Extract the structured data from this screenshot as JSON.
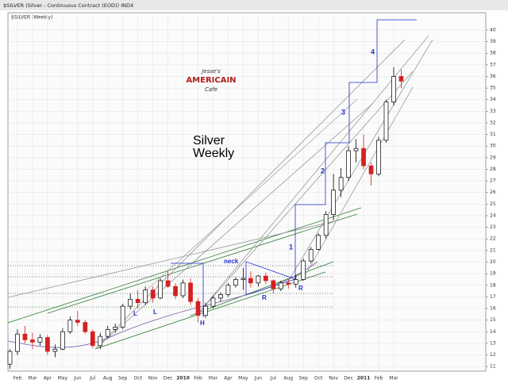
{
  "chart_data": {
    "type": "candlestick",
    "title": "$SILVER (Silver - Continuous Contract (EOD)) INDX",
    "subtitle": "$SILVER (Weekly)",
    "logo": [
      "Jesse's",
      "AMERICAIN",
      "Cafe"
    ],
    "annotations": [
      "Silver",
      "Weekly",
      "neck",
      "L",
      "L",
      "H",
      "R",
      "R",
      "1",
      "2",
      "3",
      "4"
    ],
    "categories": [
      null,
      "Feb",
      null,
      "Mar",
      null,
      "Apr",
      null,
      "May",
      null,
      "Jun",
      null,
      "Jul",
      null,
      "Aug",
      null,
      "Sep",
      null,
      "Oct",
      null,
      "Nov",
      null,
      "Dec",
      null,
      "2010",
      null,
      "Feb",
      null,
      "Mar",
      null,
      "Apr",
      null,
      "May",
      null,
      "Jun",
      null,
      "Jul",
      null,
      "Aug",
      null,
      "Sep",
      null,
      "Oct",
      null,
      "Nov",
      null,
      "Dec",
      null,
      "2011",
      null,
      "Feb",
      null,
      "Mar",
      null
    ],
    "open": [
      11.2,
      12.3,
      13.8,
      13.3,
      13.1,
      13.5,
      12.3,
      12.5,
      14.0,
      15.0,
      14.8,
      14.0,
      12.8,
      13.6,
      14.2,
      14.4,
      16.2,
      16.8,
      16.5,
      17.6,
      16.9,
      18.4,
      17.9,
      17.1,
      18.2,
      16.6,
      15.4,
      16.2,
      16.9,
      17.2,
      18.0,
      18.5,
      18.6,
      18.2,
      18.8,
      18.4,
      17.7,
      18.2,
      18.1,
      18.5,
      20.1,
      21.1,
      22.3,
      24.1,
      26.2,
      27.3,
      29.6,
      29.8,
      28.3,
      27.6,
      30.5,
      33.8,
      36.0
    ],
    "high": [
      12.5,
      14.2,
      14.5,
      13.9,
      13.8,
      13.7,
      12.9,
      14.3,
      15.3,
      15.8,
      15.0,
      14.2,
      13.9,
      14.5,
      14.7,
      16.4,
      17.3,
      17.6,
      17.9,
      17.9,
      18.6,
      19.3,
      18.2,
      18.5,
      18.6,
      16.9,
      16.5,
      17.1,
      17.4,
      18.2,
      18.7,
      19.5,
      19.2,
      18.9,
      19.1,
      18.5,
      18.4,
      18.5,
      18.9,
      20.3,
      21.3,
      22.5,
      24.4,
      27.6,
      28.1,
      30.0,
      30.6,
      31.0,
      28.6,
      30.8,
      34.0,
      36.8,
      36.6
    ],
    "low": [
      10.8,
      12.0,
      13.0,
      12.5,
      12.8,
      12.0,
      11.8,
      12.4,
      13.8,
      14.5,
      13.8,
      12.6,
      12.5,
      13.4,
      13.9,
      14.2,
      15.9,
      16.0,
      16.3,
      16.5,
      16.8,
      17.8,
      16.8,
      16.9,
      16.3,
      14.8,
      15.2,
      16.0,
      16.6,
      17.0,
      17.8,
      17.6,
      17.8,
      17.9,
      18.1,
      17.3,
      17.5,
      17.7,
      17.8,
      18.4,
      19.9,
      21.0,
      22.0,
      23.6,
      25.6,
      27.0,
      28.6,
      28.0,
      26.6,
      27.4,
      30.3,
      33.5,
      35.0
    ],
    "close": [
      12.3,
      13.8,
      13.3,
      13.1,
      13.5,
      12.3,
      12.5,
      14.0,
      15.0,
      14.8,
      14.0,
      12.8,
      13.6,
      14.2,
      14.4,
      16.2,
      16.8,
      16.5,
      17.6,
      16.9,
      18.4,
      17.9,
      17.1,
      18.2,
      16.6,
      15.4,
      16.2,
      16.9,
      17.2,
      18.0,
      18.5,
      18.6,
      18.2,
      18.8,
      18.4,
      17.7,
      18.2,
      18.1,
      18.5,
      20.1,
      21.1,
      22.3,
      24.1,
      26.2,
      27.3,
      29.6,
      29.8,
      28.3,
      27.6,
      30.5,
      33.8,
      36.0,
      35.6
    ],
    "up_color": "#000000",
    "down_color": "#d42020",
    "ylim": [
      10.6,
      41.5
    ],
    "yticks": [
      11,
      12,
      13,
      14,
      15,
      16,
      17,
      18,
      19,
      20,
      21,
      22,
      23,
      24,
      25,
      26,
      27,
      28,
      29,
      30,
      31,
      32,
      33,
      34,
      35,
      36,
      37,
      38,
      39,
      40
    ],
    "grid": true
  }
}
